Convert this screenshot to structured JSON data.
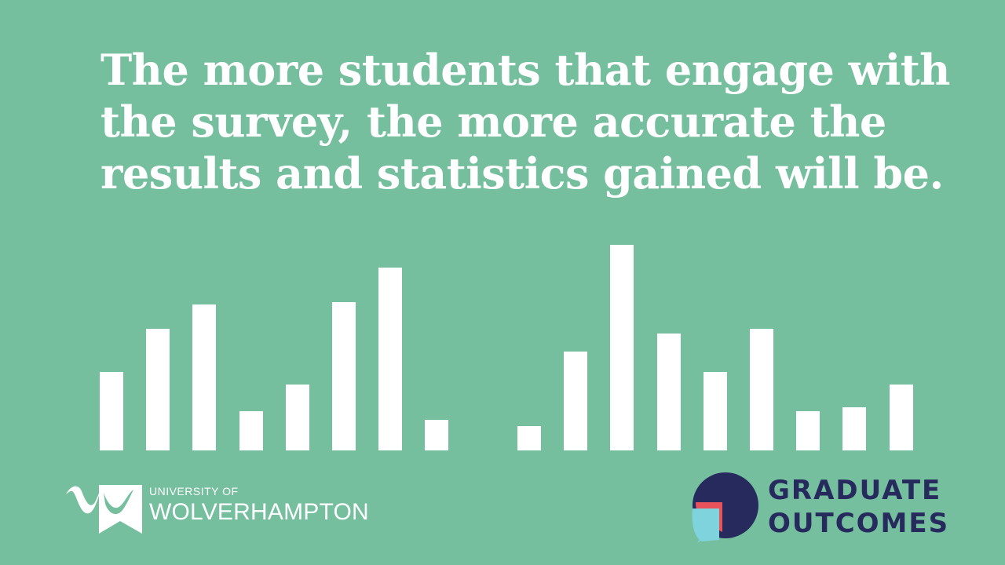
{
  "headline": {
    "line1": "The more students that engage with",
    "line2": "the survey, the more accurate the",
    "line3": "results and statistics gained will be."
  },
  "decorative_bars": {
    "color": "#ffffff",
    "left_group_levels": [
      0.38,
      0.59,
      0.71,
      0.19,
      0.32,
      0.72,
      0.89,
      0.15
    ],
    "right_group_levels": [
      0.12,
      0.48,
      1.0,
      0.57,
      0.38,
      0.59,
      0.19,
      0.21,
      0.32
    ]
  },
  "logos": {
    "university": {
      "line1": "UNIVERSITY OF",
      "line2": "WOLVERHAMPTON"
    },
    "graduate_outcomes": {
      "line1": "GRADUATE",
      "line2": "OUTCOMES"
    }
  },
  "colors": {
    "background": "#75bf9f",
    "text": "#ffffff",
    "brand_navy": "#262a5c",
    "brand_red": "#e8525b",
    "brand_teal": "#7fd3dc"
  }
}
